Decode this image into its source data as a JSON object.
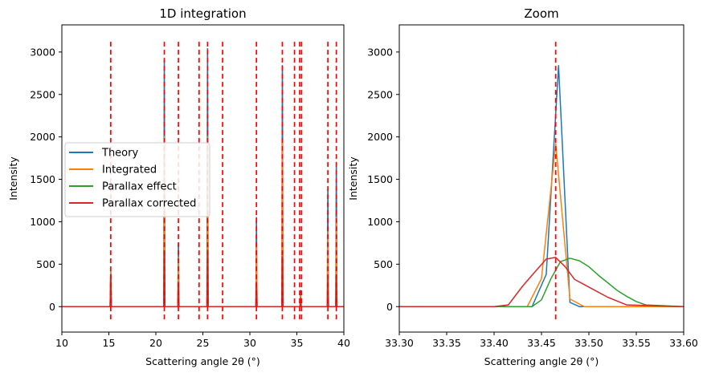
{
  "chart_data": [
    {
      "type": "line",
      "title": "1D integration",
      "xlabel": "Scattering angle 2θ (°)",
      "ylabel": "Intensity",
      "xlim": [
        10,
        40
      ],
      "ylim": [
        -300,
        3320
      ],
      "xticks": [
        "10",
        "15",
        "20",
        "25",
        "30",
        "35",
        "40"
      ],
      "yticks": [
        "0",
        "500",
        "1000",
        "1500",
        "2000",
        "2500",
        "3000"
      ],
      "legend_position": "center-left",
      "reference_lines": [
        15.2,
        20.9,
        22.4,
        24.6,
        25.5,
        27.1,
        30.7,
        33.46,
        34.75,
        35.3,
        35.5,
        38.3,
        39.2
      ],
      "reference_line_range": [
        -150,
        3150
      ],
      "series": [
        {
          "name": "Theory",
          "color": "#1f77b4",
          "peaks": [
            [
              15.2,
              420
            ],
            [
              20.9,
              2900
            ],
            [
              22.4,
              750
            ],
            [
              25.5,
              3040
            ],
            [
              30.7,
              1050
            ],
            [
              33.46,
              2840
            ],
            [
              35.4,
              190
            ],
            [
              38.3,
              1380
            ],
            [
              39.2,
              1700
            ]
          ]
        },
        {
          "name": "Integrated",
          "color": "#ff7f0e",
          "peaks": [
            [
              15.2,
              410
            ],
            [
              20.9,
              2000
            ],
            [
              22.4,
              580
            ],
            [
              25.5,
              2000
            ],
            [
              30.7,
              730
            ],
            [
              33.46,
              1950
            ],
            [
              35.4,
              130
            ],
            [
              38.3,
              880
            ],
            [
              39.2,
              1050
            ]
          ]
        },
        {
          "name": "Parallax effect",
          "color": "#2ca02c",
          "peaks": [
            [
              15.2,
              380
            ],
            [
              20.9,
              660
            ],
            [
              22.4,
              290
            ],
            [
              25.5,
              670
            ],
            [
              30.7,
              290
            ],
            [
              33.46,
              580
            ],
            [
              35.4,
              100
            ],
            [
              38.3,
              330
            ],
            [
              39.2,
              360
            ]
          ]
        },
        {
          "name": "Parallax corrected",
          "color": "#d62728",
          "peaks": [
            [
              15.2,
              370
            ],
            [
              20.9,
              640
            ],
            [
              22.4,
              280
            ],
            [
              25.5,
              650
            ],
            [
              30.7,
              280
            ],
            [
              33.46,
              590
            ],
            [
              35.4,
              95
            ],
            [
              38.3,
              320
            ],
            [
              39.2,
              350
            ]
          ]
        }
      ]
    },
    {
      "type": "line",
      "title": "Zoom",
      "xlabel": "Scattering angle 2θ (°)",
      "ylabel": "Intensity",
      "xlim": [
        33.3,
        33.6
      ],
      "ylim": [
        -300,
        3320
      ],
      "xticks": [
        "33.30",
        "33.35",
        "33.40",
        "33.45",
        "33.50",
        "33.55",
        "33.60"
      ],
      "yticks": [
        "0",
        "500",
        "1000",
        "1500",
        "2000",
        "2500",
        "3000"
      ],
      "reference_lines": [
        33.465
      ],
      "reference_line_range": [
        -150,
        3150
      ],
      "series": [
        {
          "name": "Theory",
          "color": "#1f77b4",
          "x": [
            33.3,
            33.44,
            33.455,
            33.468,
            33.48,
            33.49,
            33.6
          ],
          "y": [
            0,
            0,
            380,
            2840,
            50,
            0,
            0
          ]
        },
        {
          "name": "Integrated",
          "color": "#ff7f0e",
          "x": [
            33.3,
            33.435,
            33.45,
            33.465,
            33.48,
            33.495,
            33.6
          ],
          "y": [
            0,
            0,
            330,
            1920,
            90,
            0,
            0
          ]
        },
        {
          "name": "Parallax effect",
          "color": "#2ca02c",
          "x": [
            33.3,
            33.41,
            33.44,
            33.45,
            33.46,
            33.47,
            33.48,
            33.49,
            33.5,
            33.51,
            33.52,
            33.53,
            33.54,
            33.55,
            33.56,
            33.6
          ],
          "y": [
            0,
            0,
            0,
            80,
            330,
            530,
            570,
            540,
            470,
            370,
            280,
            190,
            120,
            60,
            20,
            0
          ]
        },
        {
          "name": "Parallax corrected",
          "color": "#d62728",
          "x": [
            33.3,
            33.4,
            33.415,
            33.43,
            33.44,
            33.455,
            33.465,
            33.475,
            33.485,
            33.5,
            33.52,
            33.54,
            33.6
          ],
          "y": [
            0,
            0,
            20,
            240,
            370,
            560,
            580,
            470,
            320,
            230,
            110,
            20,
            0
          ]
        }
      ]
    }
  ]
}
